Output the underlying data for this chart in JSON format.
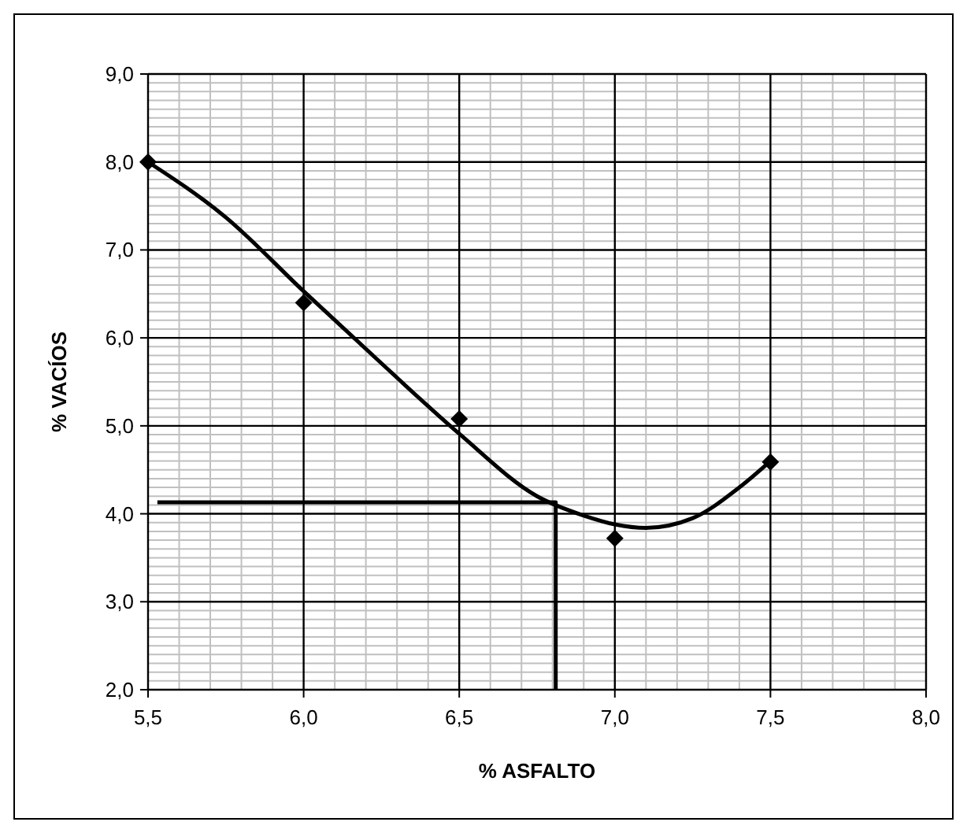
{
  "chart_data": {
    "type": "scatter",
    "xlabel": "% ASFALTO",
    "ylabel": "% VACÍOS",
    "xlim": [
      5.5,
      8.0
    ],
    "ylim": [
      2.0,
      9.0
    ],
    "xticks": [
      {
        "value": 5.5,
        "label": "5,5"
      },
      {
        "value": 6.0,
        "label": "6,0"
      },
      {
        "value": 6.5,
        "label": "6,5"
      },
      {
        "value": 7.0,
        "label": "7,0"
      },
      {
        "value": 7.5,
        "label": "7,5"
      },
      {
        "value": 8.0,
        "label": "8,0"
      }
    ],
    "yticks": [
      {
        "value": 2.0,
        "label": "2,0"
      },
      {
        "value": 3.0,
        "label": "3,0"
      },
      {
        "value": 4.0,
        "label": "4,0"
      },
      {
        "value": 5.0,
        "label": "5,0"
      },
      {
        "value": 6.0,
        "label": "6,0"
      },
      {
        "value": 7.0,
        "label": "7,0"
      },
      {
        "value": 8.0,
        "label": "8,0"
      },
      {
        "value": 9.0,
        "label": "9,0"
      }
    ],
    "grid": true,
    "series": [
      {
        "type": "line",
        "color": "#000000",
        "marker": "none",
        "line_style": "solid",
        "x": [
          5.5,
          5.75,
          6.0,
          6.25,
          6.5,
          6.75,
          6.9,
          7.0,
          7.1,
          7.25,
          7.4,
          7.5
        ],
        "values": [
          8.0,
          7.37,
          6.53,
          5.71,
          4.91,
          4.2,
          3.98,
          3.88,
          3.84,
          3.95,
          4.3,
          4.6
        ]
      },
      {
        "color": "#000000",
        "marker": "diamond",
        "x": [
          5.5,
          6.0,
          6.5,
          7.0,
          7.5
        ],
        "values": [
          8.0,
          6.4,
          5.08,
          3.72,
          4.59
        ]
      },
      {
        "type": "line",
        "color": "#000000",
        "marker": "none",
        "line_style": "solid",
        "x": [
          5.53,
          6.81,
          6.81
        ],
        "values": [
          4.13,
          4.13,
          2.0
        ]
      }
    ]
  }
}
